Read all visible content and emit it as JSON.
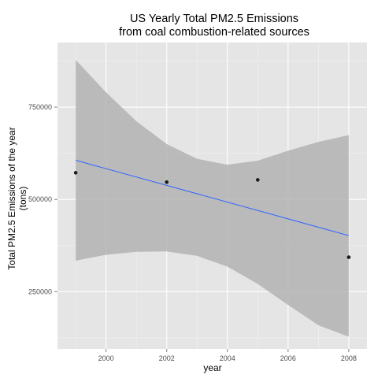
{
  "chart_data": {
    "type": "scatter",
    "title_line1": "US Yearly Total PM2.5 Emissions",
    "title_line2": "from coal combustion-related sources",
    "xlabel": "year",
    "ylabel_line1": "Total PM2.5 Emissions of the year",
    "ylabel_line2": "(tons)",
    "xlim": [
      1998.4,
      2008.6
    ],
    "ylim": [
      95000,
      925000
    ],
    "x_ticks": [
      2000,
      2002,
      2004,
      2006,
      2008
    ],
    "x_tick_labels": [
      "2000",
      "2002",
      "2004",
      "2006",
      "2008"
    ],
    "y_ticks": [
      250000,
      500000,
      750000
    ],
    "y_tick_labels": [
      "250000",
      "500000",
      "750000"
    ],
    "grid": true,
    "legend": "none",
    "points": [
      {
        "x": 1999,
        "y": 572126
      },
      {
        "x": 2002,
        "y": 546789
      },
      {
        "x": 2005,
        "y": 552881
      },
      {
        "x": 2008,
        "y": 343432
      }
    ],
    "fit_line": {
      "x": [
        1999,
        2008
      ],
      "y": [
        606000,
        402000
      ]
    },
    "confidence_band": {
      "x": [
        1999,
        2000,
        2001,
        2002,
        2003,
        2004,
        2005,
        2006,
        2007,
        2008
      ],
      "upper": [
        878000,
        790000,
        712000,
        650000,
        610000,
        594000,
        605000,
        632000,
        656000,
        674000
      ],
      "lower": [
        334000,
        350000,
        358000,
        359000,
        347000,
        318000,
        271000,
        214000,
        159000,
        128000
      ]
    },
    "colors": {
      "panel_bg": "#e5e5e5",
      "grid_major": "#ffffff",
      "grid_minor": "#f2f2f2",
      "band": "#b3b3b3",
      "line": "#3366ff",
      "point": "#1a1a1a",
      "tick_text": "#4d4d4d",
      "text": "#000000"
    }
  }
}
